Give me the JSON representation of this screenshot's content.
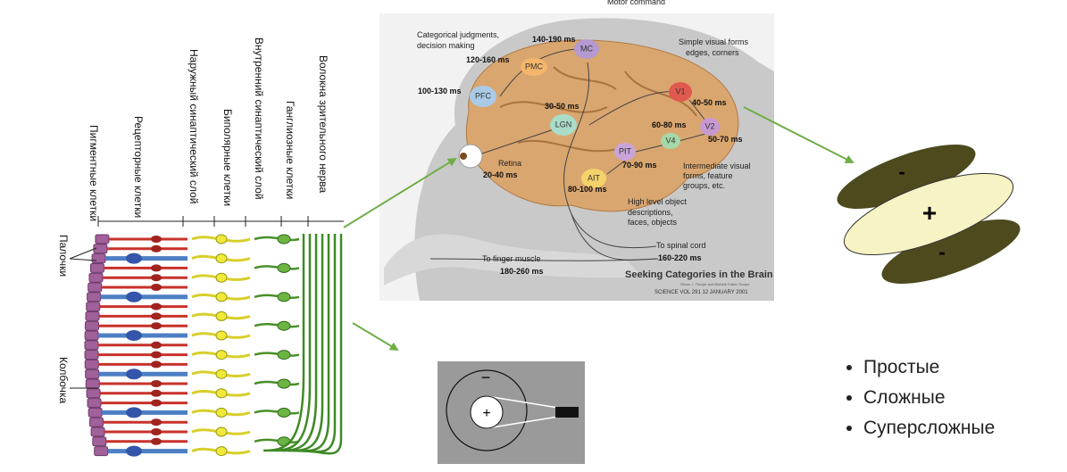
{
  "retina": {
    "layers": [
      "Пигментные клетки",
      "Рецепторные клетки",
      "Наружный синаптический слой",
      "Биполярные клетки",
      "Внутренний синаптический слой",
      "Ганглиозные клетки",
      "Волокна зрительного нерва"
    ],
    "rods": "Палочки",
    "cone": "Колбочка"
  },
  "brain": {
    "labels": [
      "Motor command",
      "Categorical judgments,",
      "decision making",
      "140-190 ms",
      "MC",
      "120-160 ms",
      "PMC",
      "100-130 ms",
      "PFC",
      "Simple visual forms",
      "edges, corners",
      "V1",
      "40-50 ms",
      "30-50 ms",
      "LGN",
      "V2",
      "60-80 ms",
      "50-70 ms",
      "V4",
      "PIT",
      "70-90 ms",
      "Retina",
      "20-40 ms",
      "AIT",
      "80-100 ms",
      "Intermediate visual",
      "forms, feature",
      "groups, etc.",
      "High level object",
      "descriptions,",
      "faces, objects",
      "To spinal cord",
      "160-220 ms",
      "To finger muscle",
      "180-260 ms"
    ],
    "title": "Seeking Categories in the Brain",
    "authors": "Simon J. Thorpe and Michèle Fabre-Thorpe",
    "citation": "SCIENCE   VOL 291   12 JANUARY 2001"
  },
  "receptive_field": {
    "surround": "−",
    "center": "+"
  },
  "simple_cell": {
    "top": "-",
    "center": "+",
    "bottom": "-"
  },
  "bullets": [
    "Простые",
    "Сложные",
    "Суперсложные"
  ]
}
